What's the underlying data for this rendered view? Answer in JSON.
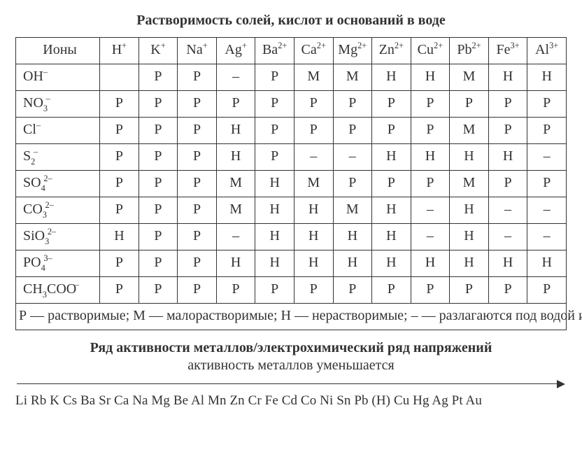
{
  "title": "Растворимость солей, кислот и оснований в воде",
  "headers": {
    "label": "Ионы",
    "cations": [
      {
        "base": "H",
        "charge": "+"
      },
      {
        "base": "K",
        "charge": "+"
      },
      {
        "base": "Na",
        "charge": "+"
      },
      {
        "base": "Ag",
        "charge": "+"
      },
      {
        "base": "Ba",
        "charge": "2+"
      },
      {
        "base": "Ca",
        "charge": "2+"
      },
      {
        "base": "Mg",
        "charge": "2+"
      },
      {
        "base": "Zn",
        "charge": "2+"
      },
      {
        "base": "Cu",
        "charge": "2+"
      },
      {
        "base": "Pb",
        "charge": "2+"
      },
      {
        "base": "Fe",
        "charge": "3+"
      },
      {
        "base": "Al",
        "charge": "3+"
      }
    ]
  },
  "rows": [
    {
      "anion": {
        "pre": "OH",
        "sub": "",
        "chg": "–"
      },
      "cells": [
        "",
        "Р",
        "Р",
        "–",
        "Р",
        "М",
        "М",
        "Н",
        "Н",
        "М",
        "Н",
        "Н"
      ]
    },
    {
      "anion": {
        "pre": "NO",
        "sub": "3",
        "chg": "–"
      },
      "cells": [
        "Р",
        "Р",
        "Р",
        "Р",
        "Р",
        "Р",
        "Р",
        "Р",
        "Р",
        "Р",
        "Р",
        "Р"
      ]
    },
    {
      "anion": {
        "pre": "Cl",
        "sub": "",
        "chg": "–"
      },
      "cells": [
        "Р",
        "Р",
        "Р",
        "Н",
        "Р",
        "Р",
        "Р",
        "Р",
        "Р",
        "М",
        "Р",
        "Р"
      ]
    },
    {
      "anion": {
        "pre": "S",
        "sub": "2",
        "chg": "–"
      },
      "cells": [
        "Р",
        "Р",
        "Р",
        "Н",
        "Р",
        "–",
        "–",
        "Н",
        "Н",
        "Н",
        "Н",
        "–"
      ]
    },
    {
      "anion": {
        "pre": "SO",
        "sub": "4",
        "chg": "2–"
      },
      "cells": [
        "Р",
        "Р",
        "Р",
        "М",
        "Н",
        "М",
        "Р",
        "Р",
        "Р",
        "М",
        "Р",
        "Р"
      ]
    },
    {
      "anion": {
        "pre": "CO",
        "sub": "3",
        "chg": "2–"
      },
      "cells": [
        "Р",
        "Р",
        "Р",
        "М",
        "Н",
        "Н",
        "М",
        "Н",
        "–",
        "Н",
        "–",
        "–"
      ]
    },
    {
      "anion": {
        "pre": "SiO",
        "sub": "3",
        "chg": "2–"
      },
      "cells": [
        "Н",
        "Р",
        "Р",
        "–",
        "Н",
        "Н",
        "Н",
        "Н",
        "–",
        "Н",
        "–",
        "–"
      ]
    },
    {
      "anion": {
        "pre": "PO",
        "sub": "4",
        "chg": "3–"
      },
      "cells": [
        "Р",
        "Р",
        "Р",
        "Н",
        "Н",
        "Н",
        "Н",
        "Н",
        "Н",
        "Н",
        "Н",
        "Н"
      ]
    },
    {
      "anion": {
        "pre": "CH",
        "sub": "3",
        "post": "COO",
        "chg": "–"
      },
      "cells": [
        "Р",
        "Р",
        "Р",
        "Р",
        "Р",
        "Р",
        "Р",
        "Р",
        "Р",
        "Р",
        "Р",
        "Р"
      ]
    }
  ],
  "legend": "Р — растворимые; М — малорастворимые; Н — нерастворимые; – — разлагаются под водой или не существуют",
  "activity": {
    "bold": "Ряд активности металлов/электрохимический ряд напряжений",
    "plain": "активность металлов уменьшается",
    "series": "Li Rb K Cs Ba Sr Ca Na Mg Be Al Mn Zn Cr Fe Cd Co Ni Sn Pb (H) Cu Hg Ag Pt Au"
  },
  "style": {
    "border_color": "#333333",
    "text_color": "#333333",
    "background": "#ffffff",
    "title_fontsize": 20,
    "cell_fontsize": 20,
    "series_fontsize": 19
  }
}
